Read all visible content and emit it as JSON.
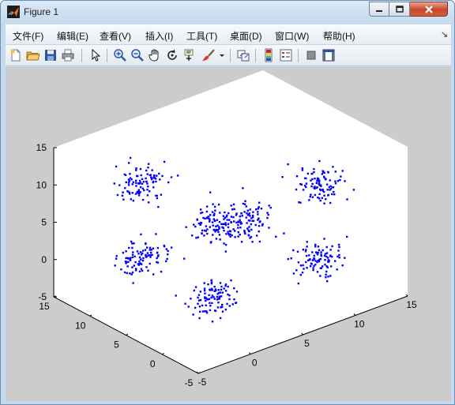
{
  "window": {
    "title": "Figure 1"
  },
  "menu": [
    {
      "label": "文件(F)",
      "name": "menu-file"
    },
    {
      "label": "编辑(E)",
      "name": "menu-edit"
    },
    {
      "label": "查看(V)",
      "name": "menu-view"
    },
    {
      "label": "插入(I)",
      "name": "menu-insert"
    },
    {
      "label": "工具(T)",
      "name": "menu-tools"
    },
    {
      "label": "桌面(D)",
      "name": "menu-desktop"
    },
    {
      "label": "窗口(W)",
      "name": "menu-window"
    },
    {
      "label": "帮助(H)",
      "name": "menu-help"
    }
  ],
  "toolbar_icons": [
    "new-figure-icon",
    "open-file-icon",
    "save-icon",
    "print-icon",
    "edit-plot-arrow-icon",
    "zoom-in-icon",
    "zoom-out-icon",
    "pan-hand-icon",
    "rotate-3d-icon",
    "data-cursor-icon",
    "brush-icon",
    "brush-dropdown-icon",
    "link-plot-icon",
    "colorbar-icon",
    "legend-icon",
    "hide-plot-tools-icon",
    "show-plot-tools-icon"
  ],
  "chart_data": {
    "type": "scatter",
    "subtype": "scatter3d",
    "marker": "point",
    "color": "#0000ff",
    "axis_background": "#ffffff",
    "figure_background": "#cccccc",
    "xlim": [
      -5,
      15
    ],
    "ylim": [
      -5,
      15
    ],
    "zlim": [
      -5,
      15
    ],
    "x_ticks": [
      "-5",
      "0",
      "5",
      "10",
      "15"
    ],
    "y_ticks": [
      "-5",
      "0",
      "5",
      "10",
      "15"
    ],
    "z_ticks": [
      "-5",
      "0",
      "5",
      "10",
      "15"
    ],
    "grid": false,
    "clusters": [
      {
        "center": [
          0,
          0,
          0
        ],
        "spread": 1,
        "points": 100
      },
      {
        "center": [
          10,
          0,
          0
        ],
        "spread": 1,
        "points": 100
      },
      {
        "center": [
          0,
          10,
          0
        ],
        "spread": 1,
        "points": 100
      },
      {
        "center": [
          0,
          0,
          10
        ],
        "spread": 1,
        "points": 100
      },
      {
        "center": [
          10,
          10,
          0
        ],
        "spread": 1,
        "points": 100
      },
      {
        "center": [
          0,
          10,
          10
        ],
        "spread": 1,
        "points": 100
      },
      {
        "center": [
          10,
          0,
          10
        ],
        "spread": 1,
        "points": 100
      }
    ]
  }
}
